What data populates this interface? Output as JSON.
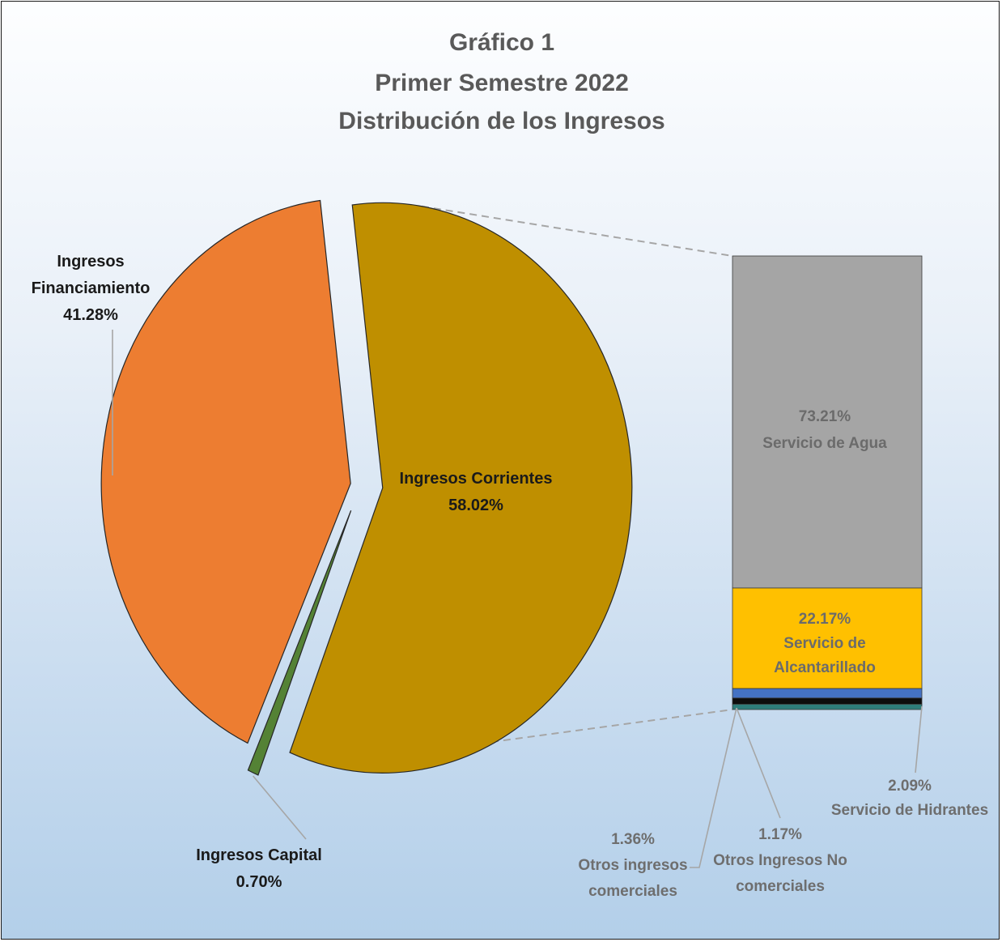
{
  "chart_data": {
    "type": "bar-of-pie",
    "title": [
      "Gráfico 1",
      "Primer Semestre 2022",
      "Distribución de los Ingresos"
    ],
    "pie": {
      "slices": [
        {
          "name_lines": [
            "Ingresos Corrientes"
          ],
          "value": 58.02,
          "label": "58.02%",
          "color": "#bf8f00"
        },
        {
          "name_lines": [
            "Ingresos Capital"
          ],
          "value": 0.7,
          "label": "0.70%",
          "color": "#548235"
        },
        {
          "name_lines": [
            "Ingresos",
            "Financiamiento"
          ],
          "value": 41.28,
          "label": "41.28%",
          "color": "#ed7d31"
        }
      ]
    },
    "bar": {
      "parent": "Ingresos Corrientes",
      "segments": [
        {
          "name_lines": [
            "Servicio de Agua"
          ],
          "value": 73.21,
          "label": "73.21%",
          "color": "#a5a5a5"
        },
        {
          "name_lines": [
            "Servicio de",
            "Alcantarillado"
          ],
          "value": 22.17,
          "label": "22.17%",
          "color": "#ffc000"
        },
        {
          "name_lines": [
            "Servicio de Hidrantes"
          ],
          "value": 2.09,
          "label": "2.09%",
          "color": "#4472c4"
        },
        {
          "name_lines": [
            "Otros ingresos",
            "comerciales"
          ],
          "value": 1.36,
          "label": "1.36%",
          "color": "#0d0d0d"
        },
        {
          "name_lines": [
            "Otros Ingresos No",
            "comerciales"
          ],
          "value": 1.17,
          "label": "1.17%",
          "color": "#2e7d7b"
        }
      ]
    }
  }
}
